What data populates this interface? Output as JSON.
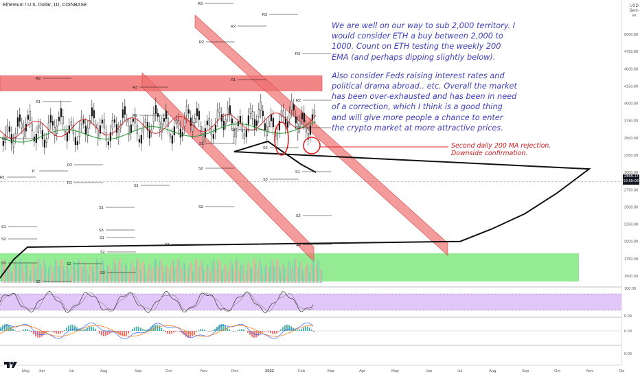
{
  "header": {
    "title": "Ethereum / U.S. Dollar, 1D, COINBASE",
    "currency": "USD",
    "currency_sub": "Sem-vx"
  },
  "notes": {
    "main_p1": "We are well on our way to sub 2,000 territory. I would consider ETH a buy between 2,000 to 1000. Count on ETH testing the weekly 200 EMA (and perhaps dipping slightly below).",
    "main_p2": "Also consider Feds raising interest rates and political drama abroad.. etc. Overall the market has been over-exhausted and has been in need of a correction, which I think is a good thing and will give more people a chance to enter the crypto market at more attractive prices.",
    "annotation_line1": "Second daily 200 MA rejection.",
    "annotation_line2": "Downside confirmation."
  },
  "price_tag": {
    "price": "2865.17",
    "countdown": "19:55:08"
  },
  "colors": {
    "up": "#26a69a",
    "down": "#ef5350",
    "support_zone": "#71e46f",
    "resistance": "#f07070",
    "ema_black": "#111111",
    "ma_green": "#2e9e3a",
    "ma_red": "#d32f2f",
    "rsi_band": "#d9b8f7",
    "note_blue": "#3f3fbf"
  },
  "chart_data": [
    {
      "type": "line",
      "title": "Ethereum / U.S. Dollar, 1D, COINBASE",
      "x_ticks": [
        "May",
        "Jun",
        "Jul",
        "Aug",
        "Sep",
        "Oct",
        "Nov",
        "Dec",
        "2022",
        "Feb",
        "Mar",
        "Apr",
        "May",
        "Jun",
        "Jul",
        "Aug",
        "Sep",
        "Oct",
        "Nov",
        "De"
      ],
      "y_ticks": [
        1500,
        1750,
        2000,
        2250,
        2500,
        2750,
        3000,
        3250,
        3500,
        3750,
        4000,
        4250,
        4500,
        4750,
        5000
      ],
      "y_tick_labels": [
        "1500.00",
        "1750.00",
        "2000.00",
        "2250.00",
        "2500.00",
        "2750.00",
        "3000.00",
        "3250.00",
        "3500.00",
        "3750.00",
        "4000.00",
        "4250.00",
        "4500.00",
        "4750.00",
        "5000.00"
      ],
      "ylim": [
        1380,
        5250
      ],
      "current_price": 2865.17,
      "support_zone": [
        1420,
        1830
      ],
      "resistance_band": [
        4180,
        4400
      ],
      "series": [
        {
          "kind": "close",
          "x": [
            "May",
            "Jun",
            "Jul",
            "Aug",
            "Sep",
            "Oct",
            "Nov",
            "Dec",
            "2022",
            "Feb"
          ],
          "values": [
            3800,
            2650,
            2200,
            2600,
            3800,
            3500,
            4500,
            4200,
            3750,
            2700
          ]
        },
        {
          "kind": "ema_200",
          "x": [
            "Jul",
            "Aug",
            "Sep",
            "Oct",
            "Nov",
            "Dec",
            "2022",
            "Feb"
          ],
          "values": [
            2000,
            2180,
            2400,
            2700,
            3050,
            3300,
            3450,
            3120
          ]
        }
      ],
      "pivot_labels": [
        "R3",
        "R2",
        "R1",
        "P",
        "S1",
        "S2",
        "S3"
      ]
    },
    {
      "type": "line",
      "title": "",
      "y_ticks": [
        0,
        100
      ],
      "y_tick_labels": [
        "0.00",
        "100.00"
      ],
      "ylim": [
        0,
        100
      ],
      "band": [
        20,
        80
      ]
    },
    {
      "type": "bar",
      "title": "",
      "y_tick_labels": [
        "0.00",
        "0.00"
      ]
    }
  ]
}
